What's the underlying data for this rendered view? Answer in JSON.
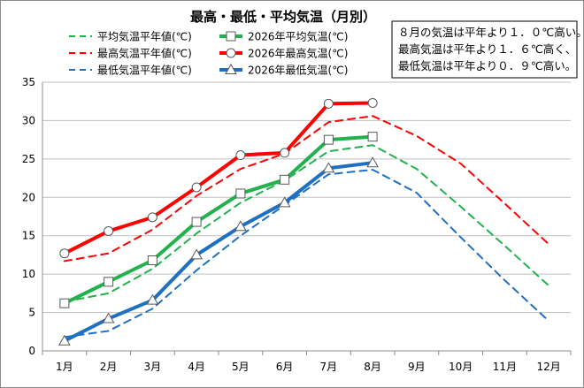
{
  "chart_data": {
    "type": "line",
    "title": "最高・最低・平均気温（月別）",
    "xlabel": "",
    "ylabel": "",
    "ylim": [
      0,
      35
    ],
    "yticks": [
      0,
      5,
      10,
      15,
      20,
      25,
      30,
      35
    ],
    "grid": true,
    "categories": [
      "1月",
      "2月",
      "3月",
      "4月",
      "5月",
      "6月",
      "7月",
      "8月",
      "9月",
      "10月",
      "11月",
      "12月"
    ],
    "series": [
      {
        "name": "平均気温平年値(℃)",
        "color": "#22b14c",
        "style": "dashed",
        "marker": "none",
        "values": [
          6.4,
          7.5,
          10.7,
          15.3,
          19.3,
          22.2,
          26.0,
          26.8,
          23.7,
          18.8,
          13.7,
          8.5
        ]
      },
      {
        "name": "2026年平均気温(℃)",
        "color": "#22b14c",
        "style": "solid",
        "marker": "square",
        "values": [
          6.2,
          9.0,
          11.8,
          16.8,
          20.5,
          22.3,
          27.5,
          27.9,
          null,
          null,
          null,
          null
        ]
      },
      {
        "name": "最高気温平年値(℃)",
        "color": "#ff0000",
        "style": "dashed",
        "marker": "none",
        "values": [
          11.7,
          12.7,
          15.8,
          20.2,
          23.7,
          25.7,
          29.8,
          30.6,
          28.0,
          24.4,
          19.2,
          13.9
        ]
      },
      {
        "name": "2026年最高気温(℃)",
        "color": "#ff0000",
        "style": "solid",
        "marker": "circle",
        "values": [
          12.7,
          15.6,
          17.4,
          21.3,
          25.5,
          25.8,
          32.2,
          32.3,
          null,
          null,
          null,
          null
        ]
      },
      {
        "name": "最低気温平年値(℃)",
        "color": "#1f6fc2",
        "style": "dashed",
        "marker": "none",
        "values": [
          1.8,
          2.6,
          5.5,
          10.5,
          15.0,
          19.0,
          23.0,
          23.6,
          20.6,
          14.8,
          9.2,
          3.9
        ]
      },
      {
        "name": "2026年最低気温(℃)",
        "color": "#1f6fc2",
        "style": "solid",
        "marker": "triangle",
        "values": [
          1.3,
          4.2,
          6.6,
          12.5,
          16.2,
          19.3,
          23.8,
          24.5,
          null,
          null,
          null,
          null
        ]
      }
    ],
    "legend_position": "top-left",
    "annotations": [
      "８月の気温は平年より１．０℃高い。",
      "最高気温は平年より１．６℃高く、",
      "最低気温は平年より０．９℃高い。"
    ]
  }
}
